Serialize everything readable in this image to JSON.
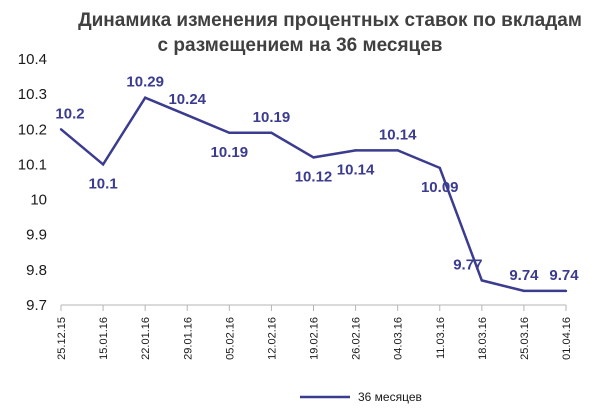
{
  "chart_data": {
    "type": "line",
    "title": [
      "Динамика изменения процентных ставок по вкладам",
      "с размещением на 36 месяцев"
    ],
    "xlabel": "",
    "ylabel": "",
    "x": [
      "25.12.15",
      "15.01.16",
      "22.01.16",
      "29.01.16",
      "05.02.16",
      "12.02.16",
      "19.02.16",
      "26.02.16",
      "04.03.16",
      "11.03.16",
      "18.03.16",
      "25.03.16",
      "01.04.16"
    ],
    "yticks": [
      "9.7",
      "9.8",
      "9.9",
      "10",
      "10.1",
      "10.2",
      "10.3",
      "10.4"
    ],
    "ylim": [
      9.7,
      10.4
    ],
    "grid": false,
    "legend_position": "bottom",
    "series": [
      {
        "name": "36 месяцев",
        "color": "#3b3b8f",
        "values": [
          10.2,
          10.1,
          10.29,
          10.24,
          10.19,
          10.19,
          10.12,
          10.14,
          10.14,
          10.09,
          9.77,
          9.74,
          9.74
        ],
        "labels": [
          "10.2",
          "10.1",
          "10.29",
          "10.24",
          "10.19",
          "10.19",
          "10.12",
          "10.14",
          "10.14",
          "10.09",
          "9.77",
          "9.74",
          "9.74"
        ]
      }
    ]
  }
}
